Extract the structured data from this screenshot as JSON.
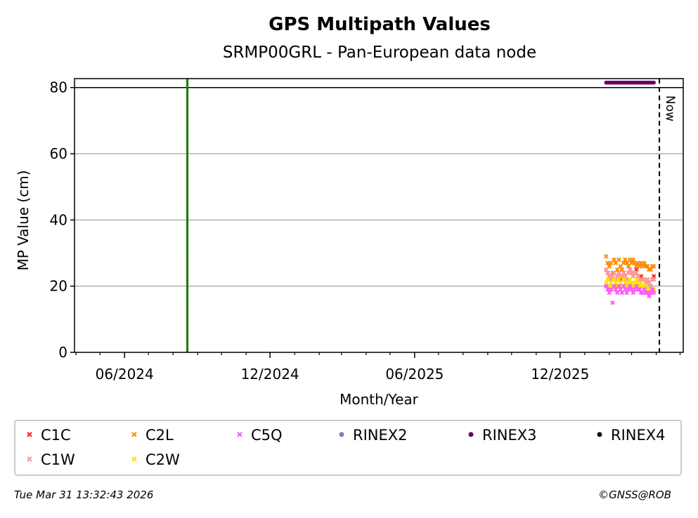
{
  "chart_data": {
    "type": "scatter",
    "title": "GPS Multipath Values",
    "subtitle": "SRMP00GRL - Pan-European data node",
    "xlabel": "Month/Year",
    "ylabel": "MP Value (cm)",
    "xlim": [
      "2024-03-30",
      "2026-05-05"
    ],
    "ylim": [
      0,
      82.7
    ],
    "yticks": [
      0,
      20,
      40,
      60,
      80
    ],
    "xticks": [
      {
        "date": "2024-06-01",
        "label": "06/2024"
      },
      {
        "date": "2024-12-01",
        "label": "12/2024"
      },
      {
        "date": "2025-06-01",
        "label": "06/2025"
      },
      {
        "date": "2025-12-01",
        "label": "12/2025"
      }
    ],
    "grid": "horizontal",
    "reference_line_y": 80,
    "event_line_date": "2024-08-19",
    "now_line": {
      "date": "2026-04-05",
      "label": "Now"
    },
    "x": [
      "2026-01-28",
      "2026-01-30",
      "2026-02-01",
      "2026-02-03",
      "2026-02-05",
      "2026-02-07",
      "2026-02-09",
      "2026-02-11",
      "2026-02-13",
      "2026-02-15",
      "2026-02-17",
      "2026-02-19",
      "2026-02-21",
      "2026-02-23",
      "2026-02-25",
      "2026-02-27",
      "2026-03-01",
      "2026-03-03",
      "2026-03-05",
      "2026-03-07",
      "2026-03-09",
      "2026-03-11",
      "2026-03-13",
      "2026-03-15",
      "2026-03-17",
      "2026-03-19",
      "2026-03-21",
      "2026-03-23",
      "2026-03-25",
      "2026-03-27",
      "2026-03-29"
    ],
    "series": [
      {
        "name": "C1C",
        "color": "#ff2a1a",
        "marker": "x",
        "values": [
          25,
          24,
          23,
          22,
          23,
          24,
          22,
          23,
          24,
          22,
          23,
          24,
          23,
          22,
          24,
          25,
          24,
          23,
          24,
          25,
          23,
          22,
          23,
          22,
          22,
          21,
          22,
          21,
          20,
          22,
          23
        ]
      },
      {
        "name": "C2L",
        "color": "#ff8c00",
        "marker": "x",
        "values": [
          29,
          27,
          26,
          27,
          24,
          28,
          27,
          25,
          28,
          26,
          25,
          27,
          28,
          27,
          26,
          28,
          27,
          28,
          27,
          26,
          27,
          26,
          27,
          26,
          27,
          26,
          26,
          25,
          25,
          26,
          26
        ]
      },
      {
        "name": "C5Q",
        "color": "#ff55ff",
        "marker": "x",
        "values": [
          20,
          19,
          18,
          19,
          15,
          20,
          19,
          18,
          20,
          19,
          18,
          20,
          19,
          18,
          19,
          20,
          19,
          18,
          19,
          20,
          19,
          19,
          18,
          18,
          19,
          18,
          18,
          17,
          18,
          19,
          18
        ]
      },
      {
        "name": "RINEX2",
        "color": "#7f7fbf",
        "marker": "o",
        "values": []
      },
      {
        "name": "RINEX3",
        "color": "#6a0060",
        "marker": "o",
        "values": [
          81.5,
          81.5,
          81.5,
          81.5,
          81.5,
          81.5,
          81.5,
          81.5,
          81.5,
          81.5,
          81.5,
          81.5,
          81.5,
          81.5,
          81.5,
          81.5,
          81.5,
          81.5,
          81.5,
          81.5,
          81.5,
          81.5,
          81.5,
          81.5,
          81.5,
          81.5,
          81.5,
          81.5,
          81.5,
          81.5,
          81.5
        ]
      },
      {
        "name": "RINEX4",
        "color": "#1a0010",
        "marker": "o",
        "values": []
      },
      {
        "name": "C1W",
        "color": "#ff9999",
        "marker": "x",
        "values": [
          25,
          24,
          23,
          22,
          23,
          24,
          22,
          23,
          24,
          23,
          23,
          24,
          23,
          22,
          24,
          25,
          24,
          23,
          24,
          24,
          23,
          22,
          22,
          22,
          22,
          21,
          22,
          21,
          20,
          22,
          22
        ]
      },
      {
        "name": "C2W",
        "color": "#ffe000",
        "marker": "x",
        "values": [
          21,
          22,
          20,
          21,
          19,
          22,
          21,
          20,
          22,
          21,
          20,
          22,
          21,
          20,
          21,
          22,
          21,
          20,
          21,
          22,
          21,
          20,
          21,
          20,
          19,
          20,
          19,
          18,
          19,
          19,
          19
        ]
      }
    ],
    "legend_placement": "bottom"
  },
  "footer": {
    "timestamp": "Tue Mar 31 13:32:43 2026",
    "credit": "©GNSS@ROB"
  }
}
